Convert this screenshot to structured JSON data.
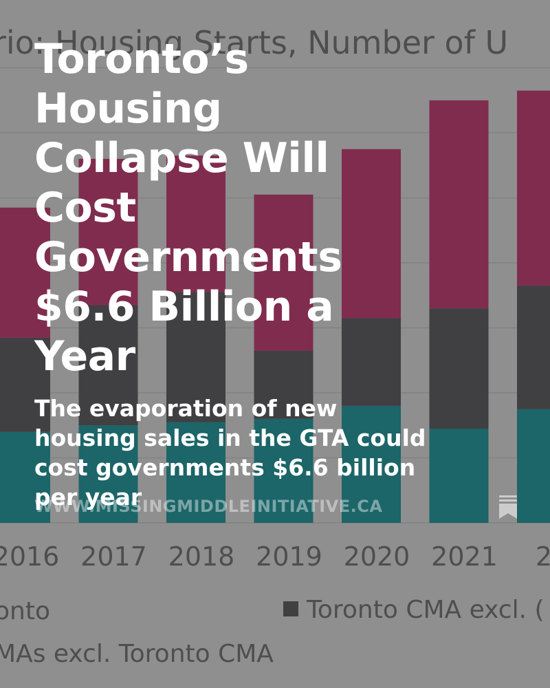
{
  "post": {
    "headline": "Toronto’s Housing Collapse Will Cost Governments $6.6 Billion a Year",
    "subtitle": "The evaporation of new housing sales in the GTA could cost governments $6.6 billion per year",
    "site_url": "WWW.MISSINGMIDDLEINITIATIVE.CA",
    "bookmark_icon": "bookmark-icon"
  },
  "colors": {
    "background": "#9d9d9d",
    "segment_teal": "#09676b",
    "segment_dark": "#38363a",
    "segment_magenta": "#8a1e4b",
    "headline_text": "#ffffff"
  },
  "chart_data": {
    "type": "bar",
    "stacked": true,
    "title": "rio: Housing Starts, Number of U",
    "categories": [
      "2016",
      "2017",
      "2018",
      "2019",
      "2020",
      "2021",
      "20"
    ],
    "series": [
      {
        "name": "",
        "values": [
          28,
          30,
          31,
          32,
          36,
          29,
          35
        ]
      },
      {
        "name": "",
        "values": [
          29,
          37,
          40,
          21,
          27,
          37,
          38
        ]
      },
      {
        "name": "",
        "values": [
          40,
          45,
          42,
          48,
          52,
          64,
          60
        ]
      }
    ],
    "legend": [
      "onto",
      "Toronto CMA excl. (",
      "MAs excl. Toronto CMA"
    ],
    "legend_placement": "bottom",
    "ylim": [
      0,
      145
    ],
    "grid": true
  }
}
